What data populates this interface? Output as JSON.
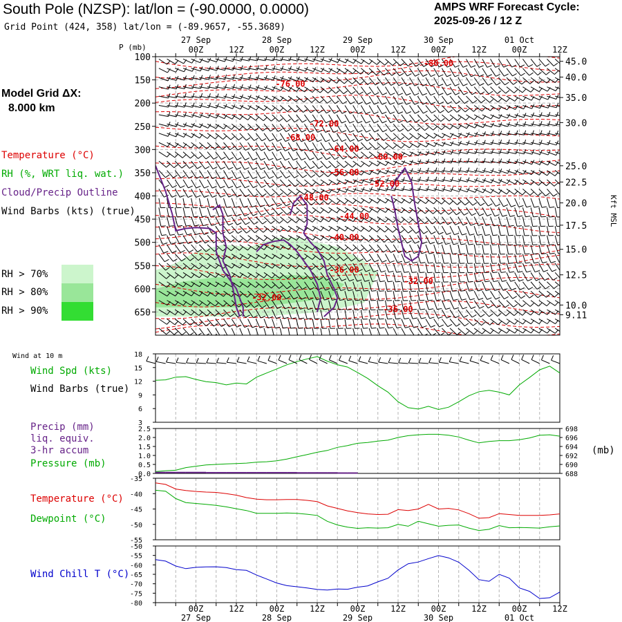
{
  "header": {
    "title": "South Pole (NZSP):  lat/lon = (-90.0000, 0.0000)",
    "grid_point": "Grid Point (424, 358) lat/lon = (-89.9657, -55.3689)",
    "cycle_line1": "AMPS WRF Forecast Cycle:",
    "cycle_line2": "2025-09-26 / 12  Z",
    "model_grid_line1": "Model Grid ΔX:",
    "model_grid_line2": "8.000 km"
  },
  "colors": {
    "temperature": "#dd0000",
    "rh_green": "#00aa00",
    "cloud": "#662288",
    "wind_chill": "#0000cc",
    "rh70": "#ccf5cc",
    "rh80": "#99e699",
    "rh90": "#33dd33",
    "grid": "#b4b4b4"
  },
  "legend": {
    "temperature": "Temperature (°C)",
    "rh": "RH (%, WRT liq. wat.)",
    "cloud": "Cloud/Precip Outline",
    "wind": "Wind Barbs (kts) (true)",
    "rh70": "RH > 70%",
    "rh80": "RH > 80%",
    "rh90": "RH > 90%",
    "wind10m_title": "Wind at 10 m",
    "wind_spd": "Wind Spd (kts)",
    "wind_barbs": "Wind Barbs (true)",
    "precip1": "Precip (mm)",
    "precip2": "liq. equiv.",
    "precip3": "3-hr accum",
    "pressure": "Pressure (mb)",
    "pressure_unit": "(mb)",
    "temp2": "Temperature (°C)",
    "dewpoint": "Dewpoint (°C)",
    "windchill": "Wind Chill T (°C)",
    "p_axis_label": "P (mb)",
    "kft_label": "Kft MSL"
  },
  "time_axis": {
    "hours": [
      0,
      6,
      12,
      18,
      24,
      30,
      36,
      42,
      48,
      54,
      60,
      66,
      72,
      78,
      84,
      90,
      96,
      102,
      108,
      114,
      120
    ],
    "top_tick_labels": [
      {
        "hour": 12,
        "label": "00Z"
      },
      {
        "hour": 24,
        "label": "12Z"
      },
      {
        "hour": 36,
        "label": "00Z"
      },
      {
        "hour": 48,
        "label": "12Z"
      },
      {
        "hour": 60,
        "label": "00Z"
      },
      {
        "hour": 72,
        "label": "12Z"
      },
      {
        "hour": 84,
        "label": "00Z"
      },
      {
        "hour": 96,
        "label": "12Z"
      },
      {
        "hour": 108,
        "label": "00Z"
      },
      {
        "hour": 120,
        "label": "12Z"
      }
    ],
    "day_labels": [
      {
        "hour": 12,
        "label": "27 Sep"
      },
      {
        "hour": 36,
        "label": "28 Sep"
      },
      {
        "hour": 60,
        "label": "29 Sep"
      },
      {
        "hour": 84,
        "label": "30 Sep"
      },
      {
        "hour": 108,
        "label": "01 Oct"
      }
    ]
  },
  "chart_data": [
    {
      "id": "time_height",
      "type": "line",
      "title": "",
      "ylabel": "P (mb)",
      "x_range": [
        0,
        120
      ],
      "y_range": [
        700,
        100
      ],
      "pressure_ticks": [
        100,
        150,
        200,
        250,
        300,
        350,
        400,
        450,
        500,
        550,
        600,
        650
      ],
      "height_ticks": [
        {
          "p": 110,
          "label": "45.0"
        },
        {
          "p": 144,
          "label": "40.0"
        },
        {
          "p": 188,
          "label": "35.0"
        },
        {
          "p": 242,
          "label": "30.0"
        },
        {
          "p": 335,
          "label": "25.0"
        },
        {
          "p": 370,
          "label": "22.5"
        },
        {
          "p": 415,
          "label": "20.0"
        },
        {
          "p": 463,
          "label": "17.5"
        },
        {
          "p": 515,
          "label": "15.0"
        },
        {
          "p": 570,
          "label": "12.5"
        },
        {
          "p": 635,
          "label": "10.0"
        },
        {
          "p": 656,
          "label": "9.11"
        }
      ],
      "temperature_labels": [
        {
          "x": 84,
          "p": 120,
          "label": "-80.00"
        },
        {
          "x": 40,
          "p": 165,
          "label": "-76.00"
        },
        {
          "x": 50,
          "p": 250,
          "label": "-72.00"
        },
        {
          "x": 43,
          "p": 280,
          "label": "-68.00"
        },
        {
          "x": 56,
          "p": 305,
          "label": "-64.00"
        },
        {
          "x": 69,
          "p": 322,
          "label": "-60.00"
        },
        {
          "x": 56,
          "p": 355,
          "label": "-56.00"
        },
        {
          "x": 68,
          "p": 380,
          "label": "-52.00"
        },
        {
          "x": 47,
          "p": 410,
          "label": "-48.00"
        },
        {
          "x": 59,
          "p": 450,
          "label": "-44.00"
        },
        {
          "x": 56,
          "p": 495,
          "label": "-40.00"
        },
        {
          "x": 56,
          "p": 565,
          "label": "-36.00"
        },
        {
          "x": 78,
          "p": 590,
          "label": "-32.00"
        },
        {
          "x": 33,
          "p": 625,
          "label": "-32.00"
        },
        {
          "x": 72,
          "p": 650,
          "label": "-36.00"
        }
      ],
      "isotherm_y_offsets_px": [],
      "rh_regions": [
        {
          "level": "rh70",
          "points": [
            [
              0,
              560
            ],
            [
              6,
              545
            ],
            [
              12,
              520
            ],
            [
              20,
              505
            ],
            [
              28,
              510
            ],
            [
              36,
              490
            ],
            [
              42,
              490
            ],
            [
              54,
              510
            ],
            [
              62,
              540
            ],
            [
              66,
              565
            ],
            [
              62,
              630
            ],
            [
              50,
              650
            ],
            [
              30,
              660
            ],
            [
              0,
              660
            ]
          ]
        },
        {
          "level": "rh80",
          "points": [
            [
              0,
              600
            ],
            [
              8,
              585
            ],
            [
              18,
              575
            ],
            [
              30,
              580
            ],
            [
              40,
              570
            ],
            [
              50,
              575
            ],
            [
              56,
              590
            ],
            [
              52,
              620
            ],
            [
              30,
              640
            ],
            [
              0,
              640
            ]
          ]
        }
      ],
      "cloud_outlines": [
        {
          "points": [
            [
              0,
              335
            ],
            [
              3,
              390
            ],
            [
              5,
              440
            ],
            [
              6,
              475
            ],
            [
              9,
              470
            ],
            [
              12,
              468
            ],
            [
              16,
              470
            ],
            [
              18,
              480
            ],
            [
              18,
              520
            ],
            [
              20,
              560
            ],
            [
              24,
              600
            ],
            [
              26,
              640
            ],
            [
              26,
              660
            ]
          ]
        },
        {
          "points": [
            [
              17,
              430
            ],
            [
              19,
              420
            ],
            [
              20,
              440
            ],
            [
              20,
              480
            ],
            [
              21,
              510
            ],
            [
              20,
              540
            ],
            [
              22,
              570
            ],
            [
              23,
              600
            ],
            [
              24,
              640
            ],
            [
              25,
              660
            ]
          ]
        },
        {
          "points": [
            [
              30,
              520
            ],
            [
              32,
              505
            ],
            [
              35,
              498
            ],
            [
              38,
              495
            ],
            [
              40,
              505
            ],
            [
              42,
              520
            ],
            [
              44,
              540
            ],
            [
              46,
              560
            ],
            [
              48,
              590
            ],
            [
              49,
              620
            ],
            [
              48,
              650
            ]
          ]
        },
        {
          "points": [
            [
              40,
              440
            ],
            [
              41,
              415
            ],
            [
              43,
              400
            ],
            [
              45,
              420
            ],
            [
              45,
              460
            ],
            [
              44,
              480
            ],
            [
              46,
              500
            ],
            [
              48,
              515
            ],
            [
              50,
              540
            ],
            [
              51,
              570
            ],
            [
              53,
              600
            ],
            [
              54,
              620
            ],
            [
              53,
              640
            ],
            [
              50,
              660
            ]
          ]
        },
        {
          "points": [
            [
              70,
              385
            ],
            [
              72,
              360
            ],
            [
              74,
              340
            ],
            [
              76,
              370
            ],
            [
              77,
              420
            ],
            [
              78,
              460
            ],
            [
              79,
              500
            ],
            [
              78,
              530
            ],
            [
              76,
              540
            ],
            [
              74,
              530
            ],
            [
              73,
              500
            ],
            [
              72,
              470
            ],
            [
              71,
              430
            ],
            [
              70,
              400
            ]
          ]
        }
      ]
    },
    {
      "id": "wind10m",
      "type": "line",
      "ylabel": "Wind Spd (kts)",
      "y_range": [
        3,
        18
      ],
      "y_ticks": [
        3,
        6,
        9,
        12,
        15,
        18
      ],
      "x": [
        0,
        3,
        6,
        9,
        12,
        15,
        18,
        21,
        24,
        27,
        30,
        33,
        36,
        39,
        42,
        45,
        48,
        51,
        54,
        57,
        60,
        63,
        66,
        69,
        72,
        75,
        78,
        81,
        84,
        87,
        90,
        93,
        96,
        99,
        102,
        105,
        108,
        111,
        114,
        117,
        120
      ],
      "values": [
        12.2,
        12.3,
        12.9,
        13.0,
        12.4,
        11.9,
        11.7,
        11.2,
        11.6,
        11.4,
        12.9,
        13.8,
        14.7,
        15.6,
        16.3,
        16.9,
        17.4,
        16.4,
        15.6,
        15.1,
        13.9,
        12.6,
        11.0,
        9.6,
        7.5,
        6.2,
        5.9,
        6.5,
        5.8,
        6.3,
        7.5,
        8.8,
        9.7,
        10.0,
        9.6,
        9.0,
        11.2,
        12.8,
        14.5,
        15.3,
        13.8
      ]
    },
    {
      "id": "precip_pressure",
      "type": "line",
      "series": [
        {
          "name": "Pressure (mb)",
          "axis": "right",
          "values": [
            688.4,
            688.6,
            688.7,
            689.3,
            689.6,
            689.9,
            690.0,
            690.1,
            690.2,
            690.3,
            690.5,
            690.6,
            690.8,
            691.2,
            691.7,
            692.2,
            692.7,
            693.1,
            693.8,
            694.2,
            694.7,
            694.9,
            695.2,
            695.4,
            696.0,
            696.4,
            696.6,
            696.7,
            696.7,
            696.5,
            696.1,
            695.4,
            694.8,
            695.1,
            695.3,
            695.3,
            695.5,
            695.9,
            696.5,
            696.6,
            696.3
          ]
        },
        {
          "name": "Precip (mm)",
          "axis": "left",
          "values": [
            0.05,
            0.05,
            0.05,
            0.05,
            0.05,
            0.04,
            0.04,
            0.04,
            0.04,
            0.04,
            0.04,
            0.04,
            0.04,
            0.04,
            0.03,
            0.03,
            0.03,
            0.03,
            0.02,
            0.02,
            0.0,
            0,
            0,
            0,
            0,
            0,
            0,
            0,
            0,
            0,
            0,
            0,
            0,
            0,
            0,
            0,
            0,
            0,
            0,
            0,
            0
          ]
        }
      ],
      "left_range": [
        0,
        2.5
      ],
      "left_ticks": [
        "0.0",
        "0.5",
        "1.0",
        "1.5",
        "2.0",
        "2.5"
      ],
      "right_range": [
        688,
        698
      ],
      "right_ticks": [
        "688",
        "690",
        "692",
        "694",
        "696",
        "698"
      ]
    },
    {
      "id": "temp_dew",
      "type": "line",
      "y_range": [
        -55,
        -35
      ],
      "y_ticks": [
        "-35",
        "-40",
        "-45",
        "-50",
        "-55"
      ],
      "series": [
        {
          "name": "Temperature (°C)",
          "values": [
            -36.5,
            -37.0,
            -38.5,
            -39.0,
            -39.3,
            -39.5,
            -39.6,
            -40.0,
            -40.5,
            -41.3,
            -41.8,
            -42.0,
            -42.0,
            -41.9,
            -41.9,
            -42.2,
            -42.6,
            -44.0,
            -44.8,
            -45.6,
            -46.2,
            -46.6,
            -46.8,
            -46.7,
            -45.2,
            -45.5,
            -45.0,
            -43.5,
            -45.0,
            -44.8,
            -45.3,
            -46.5,
            -48.0,
            -47.8,
            -46.5,
            -46.8,
            -47.1,
            -47.1,
            -47.1,
            -46.9,
            -46.6
          ]
        },
        {
          "name": "Dewpoint (°C)",
          "values": [
            -38.9,
            -39.2,
            -41.6,
            -42.9,
            -43.2,
            -43.5,
            -43.8,
            -44.3,
            -44.9,
            -45.5,
            -46.4,
            -46.4,
            -46.4,
            -46.3,
            -46.4,
            -46.7,
            -47.1,
            -49.0,
            -50.2,
            -50.9,
            -51.3,
            -51.1,
            -51.2,
            -51.1,
            -50.0,
            -50.6,
            -49.0,
            -49.8,
            -50.6,
            -50.3,
            -50.2,
            -51.2,
            -52.0,
            -51.6,
            -50.4,
            -51.1,
            -51.0,
            -51.1,
            -51.2,
            -50.8,
            -50.5
          ]
        }
      ]
    },
    {
      "id": "wind_chill",
      "type": "line",
      "ylabel": "Wind Chill T (°C)",
      "y_range": [
        -80,
        -50
      ],
      "y_ticks": [
        "-50",
        "-55",
        "-60",
        "-65",
        "-70",
        "-75",
        "-80"
      ],
      "values": [
        -57.2,
        -58.0,
        -60.6,
        -62.0,
        -61.3,
        -61.1,
        -61.0,
        -61.4,
        -62.5,
        -62.9,
        -65.4,
        -67.5,
        -69.6,
        -71.0,
        -71.6,
        -72.2,
        -73.0,
        -73.3,
        -72.8,
        -72.9,
        -71.8,
        -71.1,
        -69.0,
        -67.1,
        -62.7,
        -59.4,
        -58.5,
        -56.7,
        -55.1,
        -56.3,
        -58.6,
        -62.8,
        -67.8,
        -68.7,
        -65.0,
        -67.0,
        -72.2,
        -74.0,
        -77.8,
        -77.4,
        -74.4
      ]
    }
  ]
}
